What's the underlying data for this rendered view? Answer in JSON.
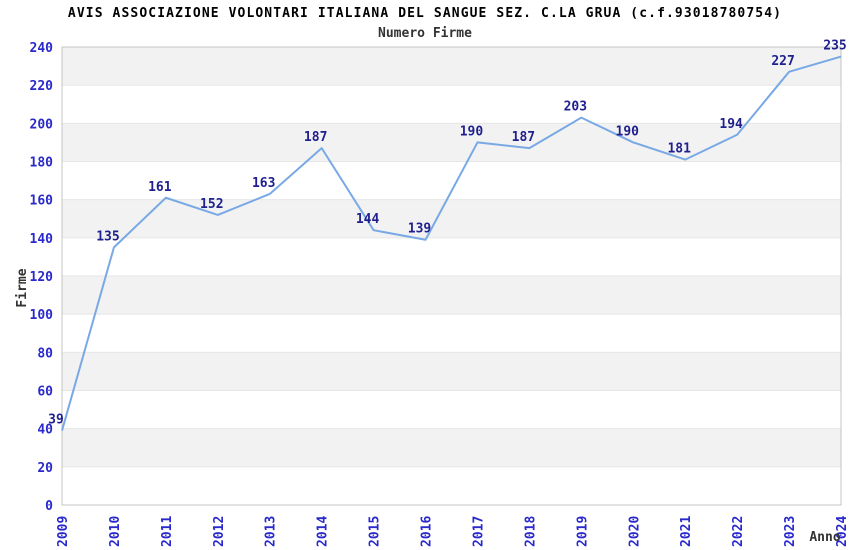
{
  "chart_data": {
    "type": "line",
    "title": "AVIS ASSOCIAZIONE VOLONTARI ITALIANA DEL SANGUE SEZ. C.LA GRUA (c.f.93018780754)",
    "subtitle": "Numero Firme",
    "xlabel": "Anno",
    "ylabel": "Firme",
    "categories": [
      "2009",
      "2010",
      "2011",
      "2012",
      "2013",
      "2014",
      "2015",
      "2016",
      "2017",
      "2018",
      "2019",
      "2020",
      "2021",
      "2022",
      "2023",
      "2024"
    ],
    "values": [
      39,
      135,
      161,
      152,
      163,
      187,
      144,
      139,
      190,
      187,
      203,
      190,
      181,
      194,
      227,
      235
    ],
    "ylim": [
      0,
      240
    ],
    "ytick_step": 20,
    "yticks": [
      0,
      20,
      40,
      60,
      80,
      100,
      120,
      140,
      160,
      180,
      200,
      220,
      240
    ],
    "grid": "alternating-horizontal-bands",
    "legend_position": "none",
    "x_tick_rotation": -90,
    "colors": {
      "line": "#79a9e5",
      "value_label": "#1f1f8f",
      "tick_label": "#2929cc",
      "band_fill": "#f2f2f2",
      "band_edge": "#e6e6e6",
      "plot_border": "#c4c4c4",
      "title": "#000000",
      "subtitle": "#333333",
      "axis_title": "#333333",
      "background": "#ffffff"
    }
  }
}
